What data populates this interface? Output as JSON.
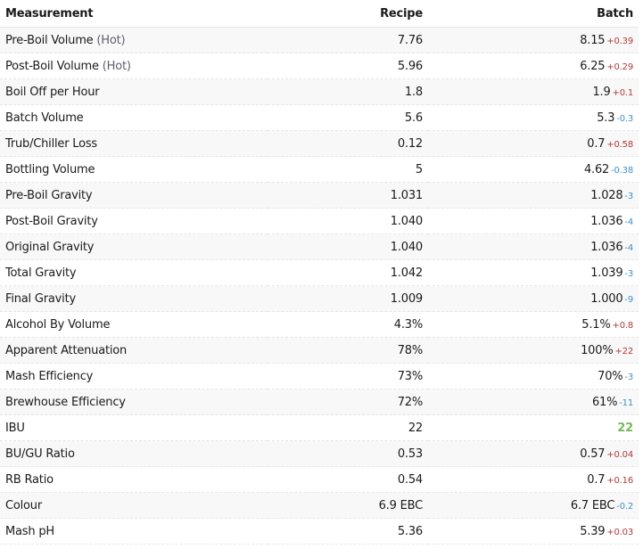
{
  "header": {
    "measurement": "Measurement",
    "recipe": "Recipe",
    "batch": "Batch"
  },
  "rows": [
    {
      "label": "Pre-Boil Volume",
      "note": "(Hot)",
      "recipe": "7.76",
      "batch": "8.15",
      "delta": "+0.39",
      "dir": "up"
    },
    {
      "label": "Post-Boil Volume",
      "note": "(Hot)",
      "recipe": "5.96",
      "batch": "6.25",
      "delta": "+0.29",
      "dir": "up"
    },
    {
      "label": "Boil Off per Hour",
      "note": "",
      "recipe": "1.8",
      "batch": "1.9",
      "delta": "+0.1",
      "dir": "up"
    },
    {
      "label": "Batch Volume",
      "note": "",
      "recipe": "5.6",
      "batch": "5.3",
      "delta": "-0.3",
      "dir": "down"
    },
    {
      "label": "Trub/Chiller Loss",
      "note": "",
      "recipe": "0.12",
      "batch": "0.7",
      "delta": "+0.58",
      "dir": "up"
    },
    {
      "label": "Bottling Volume",
      "note": "",
      "recipe": "5",
      "batch": "4.62",
      "delta": "-0.38",
      "dir": "down"
    },
    {
      "label": "Pre-Boil Gravity",
      "note": "",
      "recipe": "1.031",
      "batch": "1.028",
      "delta": "-3",
      "dir": "down"
    },
    {
      "label": "Post-Boil Gravity",
      "note": "",
      "recipe": "1.040",
      "batch": "1.036",
      "delta": "-4",
      "dir": "down"
    },
    {
      "label": "Original Gravity",
      "note": "",
      "recipe": "1.040",
      "batch": "1.036",
      "delta": "-4",
      "dir": "down"
    },
    {
      "label": "Total Gravity",
      "note": "",
      "recipe": "1.042",
      "batch": "1.039",
      "delta": "-3",
      "dir": "down"
    },
    {
      "label": "Final Gravity",
      "note": "",
      "recipe": "1.009",
      "batch": "1.000",
      "delta": "-9",
      "dir": "down"
    },
    {
      "label": "Alcohol By Volume",
      "note": "",
      "recipe": "4.3%",
      "batch": "5.1%",
      "delta": "+0.8",
      "dir": "up"
    },
    {
      "label": "Apparent Attenuation",
      "note": "",
      "recipe": "78%",
      "batch": "100%",
      "delta": "+22",
      "dir": "up"
    },
    {
      "label": "Mash Efficiency",
      "note": "",
      "recipe": "73%",
      "batch": "70%",
      "delta": "-3",
      "dir": "down"
    },
    {
      "label": "Brewhouse Efficiency",
      "note": "",
      "recipe": "72%",
      "batch": "61%",
      "delta": "-11",
      "dir": "down"
    },
    {
      "label": "IBU",
      "note": "",
      "recipe": "22",
      "batch": "22",
      "delta": "",
      "dir": "match"
    },
    {
      "label": "BU/GU Ratio",
      "note": "",
      "recipe": "0.53",
      "batch": "0.57",
      "delta": "+0.04",
      "dir": "up"
    },
    {
      "label": "RB Ratio",
      "note": "",
      "recipe": "0.54",
      "batch": "0.7",
      "delta": "+0.16",
      "dir": "up"
    },
    {
      "label": "Colour",
      "note": "",
      "recipe": "6.9 EBC",
      "batch": "6.7 EBC",
      "delta": "-0.2",
      "dir": "down"
    },
    {
      "label": "Mash pH",
      "note": "",
      "recipe": "5.36",
      "batch": "5.39",
      "delta": "+0.03",
      "dir": "up"
    }
  ],
  "colors": {
    "increase": "#b03a3a",
    "decrease": "#3f8fca",
    "match": "#78b85e"
  }
}
